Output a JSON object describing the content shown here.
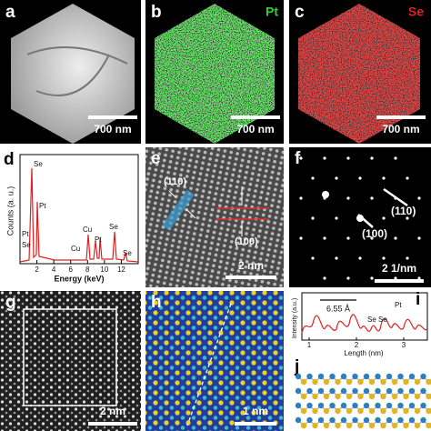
{
  "panels": {
    "a": {
      "label": "a",
      "scale": "700 nm"
    },
    "b": {
      "label": "b",
      "element": "Pt",
      "scale": "700 nm"
    },
    "c": {
      "label": "c",
      "element": "Se",
      "scale": "700 nm"
    },
    "d": {
      "label": "d",
      "y_axis": "Counts (a. u.)",
      "x_axis": "Energy (keV)",
      "x_ticks": [
        "2",
        "4",
        "6",
        "8",
        "10",
        "12"
      ],
      "peaks": [
        "Se",
        "Pt",
        "Pt",
        "Se",
        "Cu",
        "Cu",
        "Pt",
        "Se",
        "Se"
      ]
    },
    "e": {
      "label": "e",
      "planes": [
        "(110)",
        "(100)"
      ],
      "scale": "2 nm"
    },
    "f": {
      "label": "f",
      "spots": [
        "(110)",
        "(100)"
      ],
      "scale": "2 1/nm"
    },
    "g": {
      "label": "g",
      "scale": "2 nm"
    },
    "h": {
      "label": "h",
      "scale": "1 nm"
    },
    "i": {
      "label": "i",
      "y_axis": "Intensity (a.u.)",
      "x_axis": "Length (nm)",
      "x_ticks": [
        "1",
        "2",
        "3"
      ],
      "spacing": "6.55 Å",
      "peaks": [
        "Se",
        "Se",
        "Pt"
      ]
    },
    "j": {
      "label": "j"
    }
  }
}
